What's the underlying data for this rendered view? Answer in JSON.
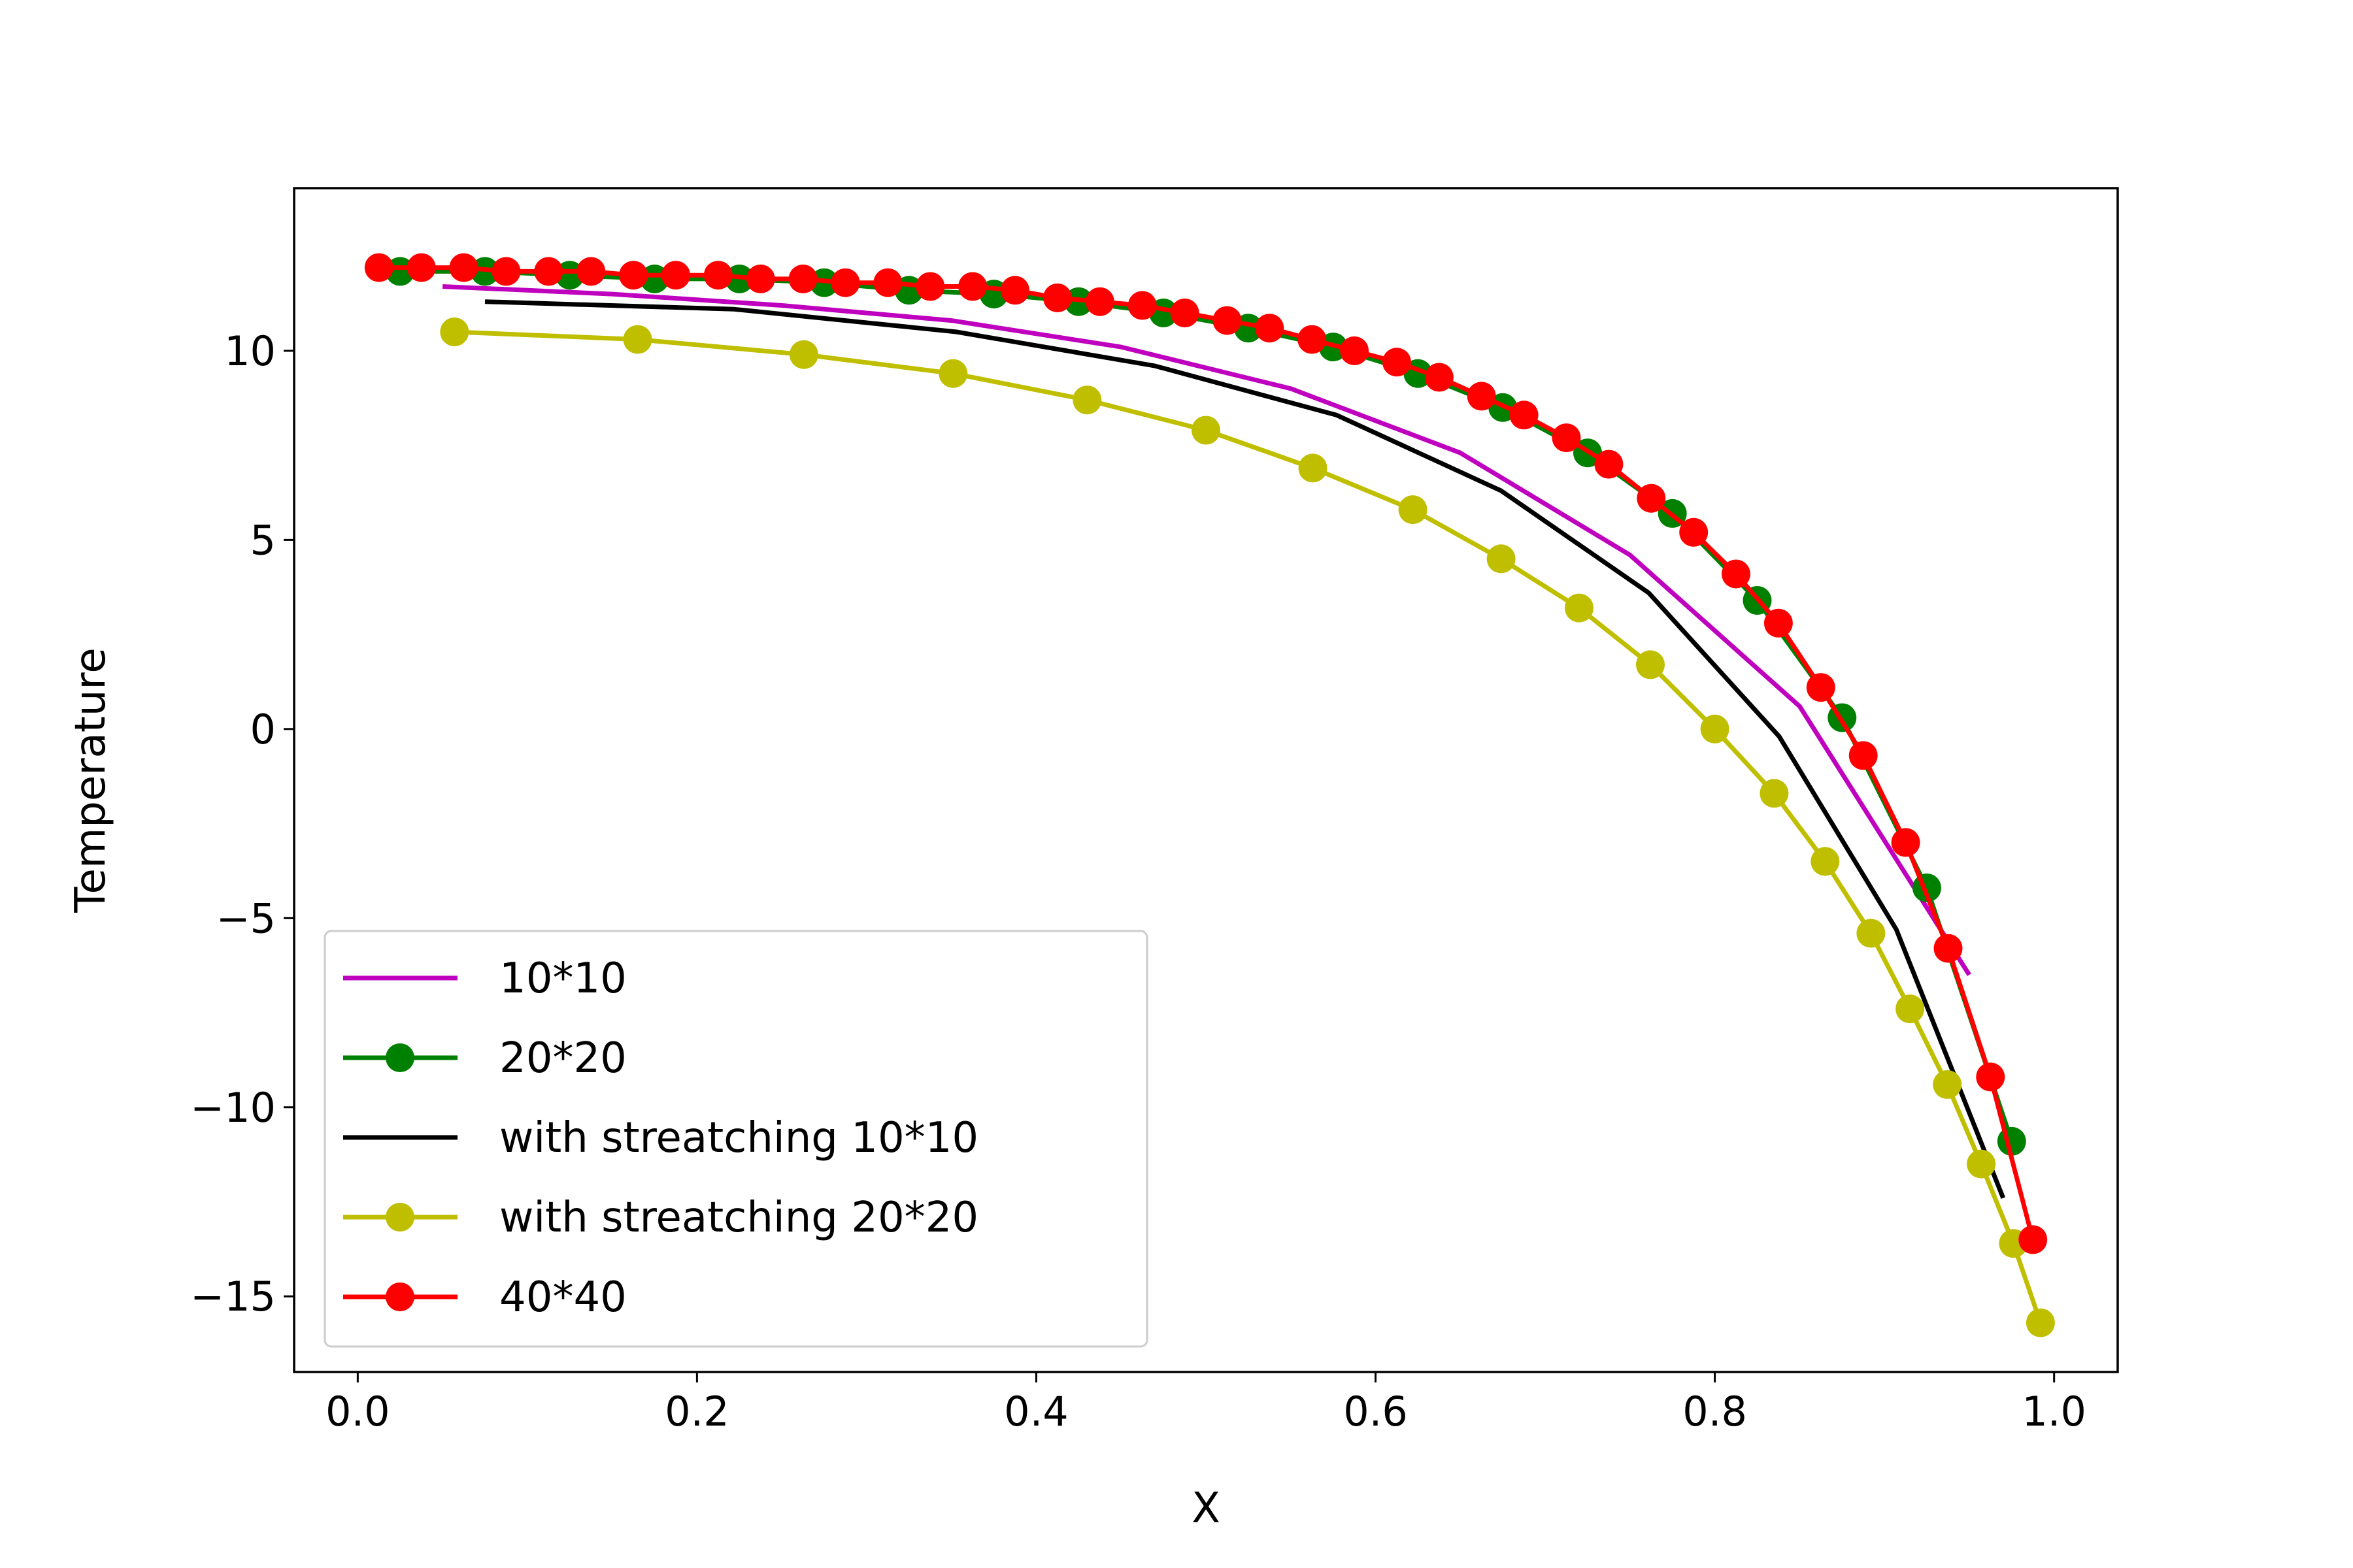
{
  "chart_data": {
    "type": "line",
    "title": "",
    "xlabel": "X",
    "ylabel": "Temperature",
    "xlim": [
      -0.0375,
      1.0375
    ],
    "ylim": [
      -17.0,
      14.3
    ],
    "xticks": [
      0.0,
      0.2,
      0.4,
      0.6,
      0.8,
      1.0
    ],
    "xtick_labels": [
      "0.0",
      "0.2",
      "0.4",
      "0.6",
      "0.8",
      "1.0"
    ],
    "yticks": [
      10,
      5,
      0,
      -5,
      -10,
      -15
    ],
    "ytick_labels": [
      "10",
      "5",
      "0",
      "−5",
      "−10",
      "−15"
    ],
    "grid": false,
    "legend_position": "lower-left",
    "series": [
      {
        "name": "10*10",
        "color": "#bf00bf",
        "marker": "none",
        "x": [
          0.05,
          0.15,
          0.25,
          0.35,
          0.45,
          0.55,
          0.65,
          0.75,
          0.85,
          0.95
        ],
        "y": [
          11.7,
          11.5,
          11.2,
          10.8,
          10.1,
          9.0,
          7.3,
          4.6,
          0.6,
          -6.5
        ]
      },
      {
        "name": "20*20",
        "color": "#008000",
        "marker": "circle",
        "x": [
          0.025,
          0.075,
          0.125,
          0.175,
          0.225,
          0.275,
          0.325,
          0.375,
          0.425,
          0.475,
          0.525,
          0.575,
          0.625,
          0.675,
          0.725,
          0.775,
          0.825,
          0.875,
          0.925,
          0.975
        ],
        "y": [
          12.1,
          12.1,
          12.0,
          11.9,
          11.9,
          11.8,
          11.6,
          11.5,
          11.3,
          11.0,
          10.6,
          10.1,
          9.4,
          8.5,
          7.3,
          5.7,
          3.4,
          0.3,
          -4.2,
          -10.9
        ]
      },
      {
        "name": "with streatching 10*10",
        "color": "#000000",
        "marker": "none",
        "x": [
          0.075,
          0.222,
          0.353,
          0.47,
          0.577,
          0.674,
          0.761,
          0.838,
          0.907,
          0.97
        ],
        "y": [
          11.3,
          11.1,
          10.5,
          9.6,
          8.3,
          6.3,
          3.6,
          -0.2,
          -5.3,
          -12.4
        ]
      },
      {
        "name": "with streatching 20*20",
        "color": "#bfbf00",
        "marker": "circle",
        "x": [
          0.057,
          0.165,
          0.263,
          0.351,
          0.43,
          0.5,
          0.563,
          0.622,
          0.674,
          0.72,
          0.762,
          0.8,
          0.835,
          0.865,
          0.892,
          0.915,
          0.937,
          0.957,
          0.976,
          0.992
        ],
        "y": [
          10.5,
          10.3,
          9.9,
          9.4,
          8.7,
          7.9,
          6.9,
          5.8,
          4.5,
          3.2,
          1.7,
          0.0,
          -1.7,
          -3.5,
          -5.4,
          -7.4,
          -9.4,
          -11.5,
          -13.6,
          -15.7
        ]
      },
      {
        "name": "40*40",
        "color": "#ff0000",
        "marker": "circle",
        "x": [
          0.0125,
          0.0375,
          0.0625,
          0.0875,
          0.1125,
          0.1375,
          0.1625,
          0.1875,
          0.2125,
          0.2375,
          0.2625,
          0.2875,
          0.3125,
          0.3375,
          0.3625,
          0.3875,
          0.4125,
          0.4375,
          0.4625,
          0.4875,
          0.5125,
          0.5375,
          0.5625,
          0.5875,
          0.6125,
          0.6375,
          0.6625,
          0.6875,
          0.7125,
          0.7375,
          0.7625,
          0.7875,
          0.8125,
          0.8375,
          0.8625,
          0.8875,
          0.9125,
          0.9375,
          0.9625,
          0.9875
        ],
        "y": [
          12.2,
          12.2,
          12.2,
          12.1,
          12.1,
          12.1,
          12.0,
          12.0,
          12.0,
          11.9,
          11.9,
          11.8,
          11.8,
          11.7,
          11.7,
          11.6,
          11.4,
          11.3,
          11.2,
          11.0,
          10.8,
          10.6,
          10.3,
          10.0,
          9.7,
          9.3,
          8.8,
          8.3,
          7.7,
          7.0,
          6.1,
          5.2,
          4.1,
          2.8,
          1.1,
          -0.7,
          -3.0,
          -5.8,
          -9.2,
          -13.5
        ]
      }
    ]
  }
}
